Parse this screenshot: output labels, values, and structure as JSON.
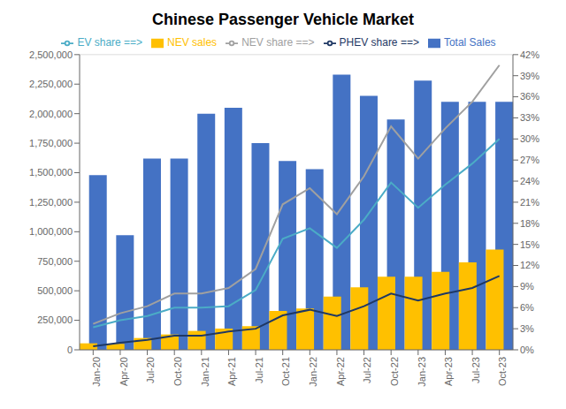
{
  "chart_data": {
    "type": "bar",
    "title": "Chinese Passenger Vehicle Market",
    "categories": [
      "Jan-20",
      "Apr-20",
      "Jul-20",
      "Oct-20",
      "Jan-21",
      "Apr-21",
      "Jul-21",
      "Oct-21",
      "Jan-22",
      "Apr-22",
      "Jul-22",
      "Oct-22",
      "Jan-23",
      "Apr-23",
      "Jul-23",
      "Oct-23"
    ],
    "series": [
      {
        "name": "Total Sales",
        "type": "bar",
        "color": "#4472C4",
        "values": [
          1480000,
          970000,
          1620000,
          1620000,
          2000000,
          2050000,
          1750000,
          1600000,
          1530000,
          2330000,
          2150000,
          1950000,
          2280000,
          2100000,
          2100000,
          2100000
        ]
      },
      {
        "name": "NEV sales",
        "type": "bar",
        "color": "#FFC000",
        "values": [
          55000,
          50000,
          100000,
          130000,
          160000,
          180000,
          200000,
          330000,
          350000,
          450000,
          530000,
          620000,
          620000,
          660000,
          740000,
          850000
        ]
      },
      {
        "name": "NEV share ==>",
        "type": "line",
        "axis": "y2",
        "color": "#A0A0A0",
        "values": [
          0.037,
          0.052,
          0.062,
          0.08,
          0.08,
          0.088,
          0.115,
          0.207,
          0.23,
          0.193,
          0.247,
          0.318,
          0.272,
          0.315,
          0.353,
          0.405
        ]
      },
      {
        "name": "EV share ==>",
        "type": "line",
        "axis": "y2",
        "color": "#4BACC6",
        "values": [
          0.032,
          0.042,
          0.048,
          0.06,
          0.06,
          0.062,
          0.085,
          0.158,
          0.173,
          0.145,
          0.185,
          0.238,
          0.202,
          0.235,
          0.265,
          0.3
        ]
      },
      {
        "name": "PHEV share ==>",
        "type": "line",
        "axis": "y2",
        "color": "#1F3864",
        "values": [
          0.005,
          0.01,
          0.014,
          0.02,
          0.02,
          0.026,
          0.03,
          0.049,
          0.057,
          0.048,
          0.062,
          0.08,
          0.07,
          0.08,
          0.088,
          0.105
        ]
      }
    ],
    "ylim": [
      0,
      2500000
    ],
    "yticks": [
      0,
      {
        "value": 250000,
        "label": "250,000"
      },
      {
        "value": 500000,
        "label": "500,000"
      },
      {
        "value": 750000,
        "label": "750,000"
      },
      {
        "value": 1000000,
        "label": "1,000,000"
      },
      {
        "value": 1250000,
        "label": "1,250,000"
      },
      {
        "value": 1500000,
        "label": "1,500,000"
      },
      {
        "value": 1750000,
        "label": "1,750,000"
      },
      {
        "value": 2000000,
        "label": "2,000,000"
      },
      {
        "value": 2250000,
        "label": "2,250,000"
      },
      {
        "value": 2500000,
        "label": "2,500,000"
      }
    ],
    "y2lim": [
      0,
      0.42
    ],
    "y2ticks": [
      {
        "value": 0,
        "label": "0%"
      },
      {
        "value": 0.03,
        "label": "3%"
      },
      {
        "value": 0.06,
        "label": "6%"
      },
      {
        "value": 0.09,
        "label": "9%"
      },
      {
        "value": 0.12,
        "label": "12%"
      },
      {
        "value": 0.15,
        "label": "15%"
      },
      {
        "value": 0.18,
        "label": "18%"
      },
      {
        "value": 0.21,
        "label": "21%"
      },
      {
        "value": 0.24,
        "label": "24%"
      },
      {
        "value": 0.27,
        "label": "27%"
      },
      {
        "value": 0.3,
        "label": "30%"
      },
      {
        "value": 0.33,
        "label": "33%"
      },
      {
        "value": 0.36,
        "label": "36%"
      },
      {
        "value": 0.39,
        "label": "39%"
      },
      {
        "value": 0.42,
        "label": "42%"
      }
    ],
    "grid": true,
    "legend": "top"
  }
}
